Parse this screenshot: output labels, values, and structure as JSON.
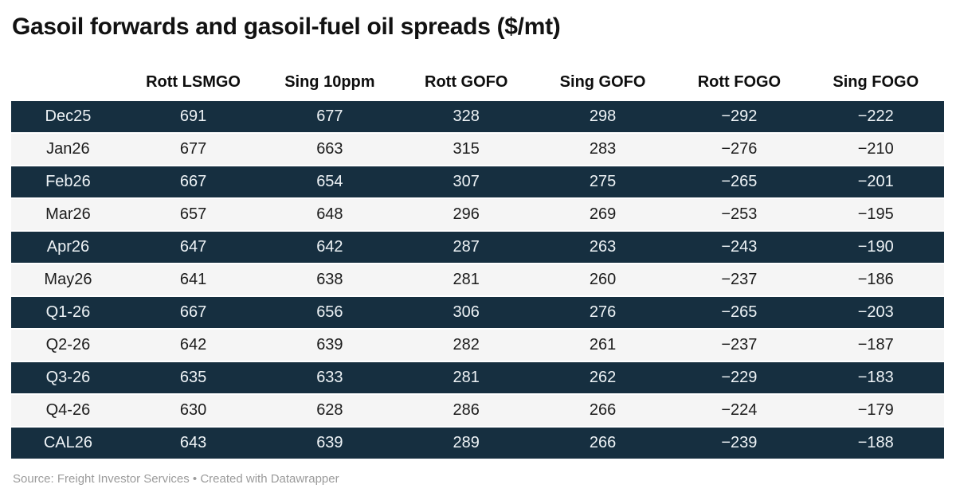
{
  "title": "Gasoil forwards and gasoil-fuel oil spreads ($/mt)",
  "footer": {
    "source": "Source: Freight Investor Services • Created with Datawrapper"
  },
  "colors": {
    "row_dark_bg": "#162F40",
    "row_light_bg": "#F5F5F5",
    "text_on_dark": "#EEF3F6",
    "text_on_light": "#1C1C1C",
    "title_text": "#121212",
    "source_text": "#9B9B9B"
  },
  "chart_data": {
    "type": "table",
    "title": "Gasoil forwards and gasoil-fuel oil spreads ($/mt)",
    "columns": [
      "",
      "Rott LSMGO",
      "Sing 10ppm",
      "Rott GOFO",
      "Sing GOFO",
      "Rott FOGO",
      "Sing FOGO"
    ],
    "rows": [
      {
        "label": "Dec25",
        "values": [
          691,
          677,
          328,
          298,
          -292,
          -222
        ]
      },
      {
        "label": "Jan26",
        "values": [
          677,
          663,
          315,
          283,
          -276,
          -210
        ]
      },
      {
        "label": "Feb26",
        "values": [
          667,
          654,
          307,
          275,
          -265,
          -201
        ]
      },
      {
        "label": "Mar26",
        "values": [
          657,
          648,
          296,
          269,
          -253,
          -195
        ]
      },
      {
        "label": "Apr26",
        "values": [
          647,
          642,
          287,
          263,
          -243,
          -190
        ]
      },
      {
        "label": "May26",
        "values": [
          641,
          638,
          281,
          260,
          -237,
          -186
        ]
      },
      {
        "label": "Q1-26",
        "values": [
          667,
          656,
          306,
          276,
          -265,
          -203
        ]
      },
      {
        "label": "Q2-26",
        "values": [
          642,
          639,
          282,
          261,
          -237,
          -187
        ]
      },
      {
        "label": "Q3-26",
        "values": [
          635,
          633,
          281,
          262,
          -229,
          -183
        ]
      },
      {
        "label": "Q4-26",
        "values": [
          630,
          628,
          286,
          266,
          -224,
          -179
        ]
      },
      {
        "label": "CAL26",
        "values": [
          643,
          639,
          289,
          266,
          -239,
          -188
        ]
      }
    ],
    "layout": {
      "row_striping": "alternating starting dark",
      "alignment": "center",
      "grid": "off"
    }
  }
}
